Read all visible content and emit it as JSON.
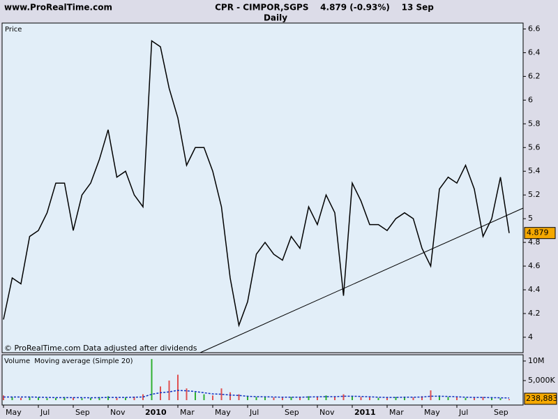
{
  "header": {
    "site": "www.ProRealTime.com",
    "title": "CPR - CIMPOR,SGPS    4.879 (-0.93%)    13 Sep",
    "period": "Daily",
    "footer": "© ProRealTime.com  Data adjusted after dividends"
  },
  "chart_data": [
    {
      "type": "line",
      "title": "Price",
      "categories": [
        "May",
        null,
        null,
        null,
        "Jul",
        null,
        null,
        null,
        "Sep",
        null,
        null,
        null,
        "Nov",
        null,
        null,
        null,
        "2010",
        null,
        null,
        null,
        "Mar",
        null,
        null,
        null,
        "May",
        null,
        null,
        null,
        "Jul",
        null,
        null,
        null,
        "Sep",
        null,
        null,
        null,
        "Nov",
        null,
        null,
        null,
        "2011",
        null,
        null,
        null,
        "Mar",
        null,
        null,
        null,
        "May",
        null,
        null,
        null,
        "Jul",
        null,
        null,
        null,
        "Sep",
        null,
        null
      ],
      "series": [
        {
          "name": "Price",
          "color": "#000000",
          "values": [
            4.15,
            4.5,
            4.45,
            4.85,
            4.9,
            5.05,
            5.3,
            5.3,
            4.9,
            5.2,
            5.3,
            5.5,
            5.75,
            5.35,
            5.4,
            5.2,
            5.1,
            6.5,
            6.45,
            6.1,
            5.85,
            5.45,
            5.6,
            5.6,
            5.4,
            5.1,
            4.5,
            4.1,
            4.3,
            4.7,
            4.8,
            4.7,
            4.65,
            4.85,
            4.75,
            5.1,
            4.95,
            5.2,
            5.05,
            4.35,
            5.3,
            5.15,
            4.95,
            4.95,
            4.9,
            5.0,
            5.05,
            5.0,
            4.75,
            4.6,
            5.25,
            5.35,
            5.3,
            5.45,
            5.25,
            4.85,
            5.0,
            5.35,
            4.879
          ]
        }
      ],
      "ylim": [
        3.87,
        6.65
      ],
      "yticks": [
        4,
        4.2,
        4.4,
        4.6,
        4.8,
        5,
        5.2,
        5.4,
        5.6,
        5.8,
        6,
        6.2,
        6.4,
        6.6
      ],
      "last_color": "#f5a800"
    },
    {
      "type": "bar",
      "series": [
        {
          "name": "Volume",
          "color": "#e05050",
          "values": [
            1200000,
            800000,
            600000,
            900000,
            700000,
            500000,
            600000,
            800000,
            700000,
            500000,
            600000,
            800000,
            1000000,
            600000,
            700000,
            900000,
            1500000,
            10500000,
            3500000,
            5000000,
            6500000,
            3000000,
            2000000,
            1500000,
            1200000,
            3000000,
            2000000,
            1500000,
            1000000,
            800000,
            900000,
            700000,
            600000,
            800000,
            700000,
            1000000,
            800000,
            1200000,
            900000,
            1500000,
            1000000,
            800000,
            700000,
            600000,
            700000,
            800000,
            900000,
            700000,
            1000000,
            2500000,
            1200000,
            800000,
            700000,
            600000,
            700000,
            800000,
            600000,
            500000,
            238883
          ]
        },
        {
          "name": "Moving average (Simple 20)",
          "type": "line",
          "color": "#1030c0",
          "values": [
            800000,
            800000,
            800000,
            800000,
            750000,
            700000,
            650000,
            650000,
            650000,
            650000,
            600000,
            650000,
            700000,
            700000,
            700000,
            750000,
            800000,
            1500000,
            1900000,
            2100000,
            2500000,
            2400000,
            2200000,
            1900000,
            1600000,
            1500000,
            1300000,
            1200000,
            1000000,
            900000,
            850000,
            800000,
            750000,
            750000,
            750000,
            800000,
            850000,
            900000,
            900000,
            1000000,
            1000000,
            950000,
            850000,
            750000,
            700000,
            700000,
            750000,
            750000,
            800000,
            1000000,
            1000000,
            950000,
            850000,
            750000,
            700000,
            700000,
            650000,
            600000,
            550000
          ]
        }
      ],
      "up_color": "#30b030",
      "ylim": [
        0,
        11600000
      ],
      "yticks": [
        {
          "value": 10000000,
          "label": "10M"
        },
        {
          "value": 5000000,
          "label": "5,000K"
        }
      ],
      "last_value": {
        "value": 238883,
        "label": "238,883"
      },
      "last_color": "#f5a800"
    }
  ]
}
